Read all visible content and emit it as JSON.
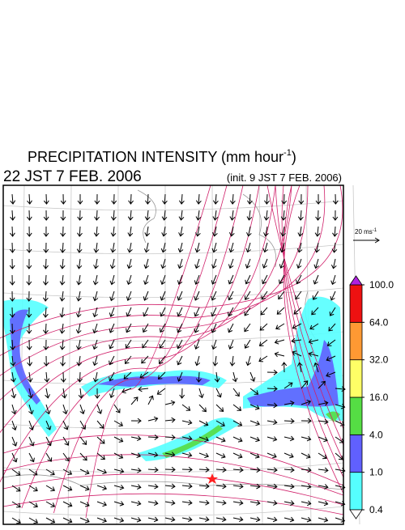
{
  "header": {
    "title": "PRECIPITATION INTENSITY (mm hour",
    "title_sup": "-1",
    "title_end": ")",
    "valid_time": "22 JST 7 FEB. 2006",
    "init_time": "(init. 9 JST 7 FEB. 2006)"
  },
  "wind_scale": {
    "label": "20 ms",
    "sup": "-1"
  },
  "colorbar": {
    "levels": [
      0.4,
      {
        "value": 1,
        "label": "1.0"
      },
      {
        "value": 4,
        "label": "4.0"
      },
      {
        "value": 16,
        "label": "16.0"
      },
      {
        "value": 32,
        "label": "32.0"
      },
      {
        "value": 64,
        "label": "64.0"
      },
      {
        "value": 100,
        "label": "100.0"
      }
    ],
    "colors": [
      "#55ffff",
      "#6060ff",
      "#55dd44",
      "#ffff66",
      "#ff9933",
      "#ee1111"
    ],
    "under_color": "#ffffff",
    "over_color": "#b020e0"
  }
}
